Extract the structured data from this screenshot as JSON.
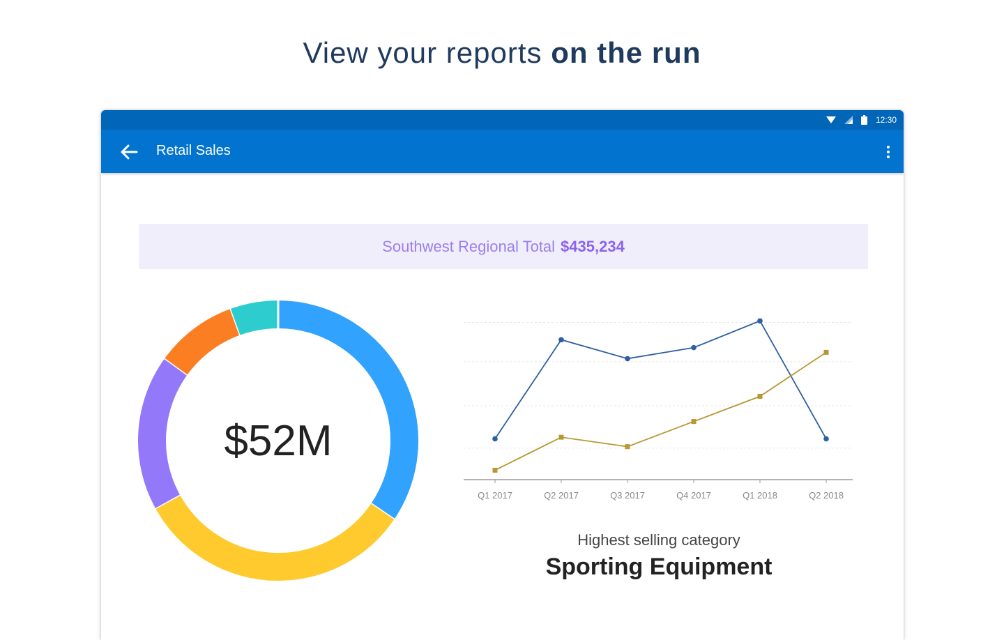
{
  "headline": {
    "regular": "View your reports ",
    "bold": "on the run"
  },
  "status": {
    "time": "12:30",
    "icons": [
      "wifi-icon",
      "signal-icon",
      "battery-icon"
    ]
  },
  "appbar": {
    "title": "Retail Sales",
    "back_icon": "arrow-left-icon",
    "menu_icon": "more-vertical-icon"
  },
  "banner": {
    "label": "Southwest Regional Total",
    "amount": "$435,234"
  },
  "colors": {
    "statusbar": "#0266b8",
    "appbar": "#0274cf",
    "banner_bg": "#f1eefc",
    "banner_text": "#9b7fee",
    "series_a": "#2d5fa3",
    "series_b": "#b89835"
  },
  "donut": {
    "center_label": "$52M",
    "segments": [
      {
        "share": 0.345,
        "color": "#31a2fd"
      },
      {
        "share": 0.325,
        "color": "#ffca2e"
      },
      {
        "share": 0.18,
        "color": "#9478fa"
      },
      {
        "share": 0.095,
        "color": "#fb7f22"
      },
      {
        "share": 0.055,
        "color": "#2dcccf"
      }
    ]
  },
  "chart_data": {
    "type": "line",
    "categories": [
      "Q1 2017",
      "Q2 2017",
      "Q3 2017",
      "Q4 2017",
      "Q1 2018",
      "Q2 2018"
    ],
    "series": [
      {
        "values": [
          26,
          89,
          77,
          84,
          101,
          26
        ],
        "color": "#2d5fa3",
        "marker": "circle"
      },
      {
        "values": [
          6,
          27,
          21,
          37,
          53,
          81
        ],
        "color": "#b89835",
        "marker": "square"
      }
    ],
    "ylim": [
      0,
      110
    ],
    "grid": true,
    "title": "",
    "xlabel": "",
    "ylabel": ""
  },
  "summary": {
    "label": "Highest selling category",
    "value": "Sporting Equipment"
  }
}
